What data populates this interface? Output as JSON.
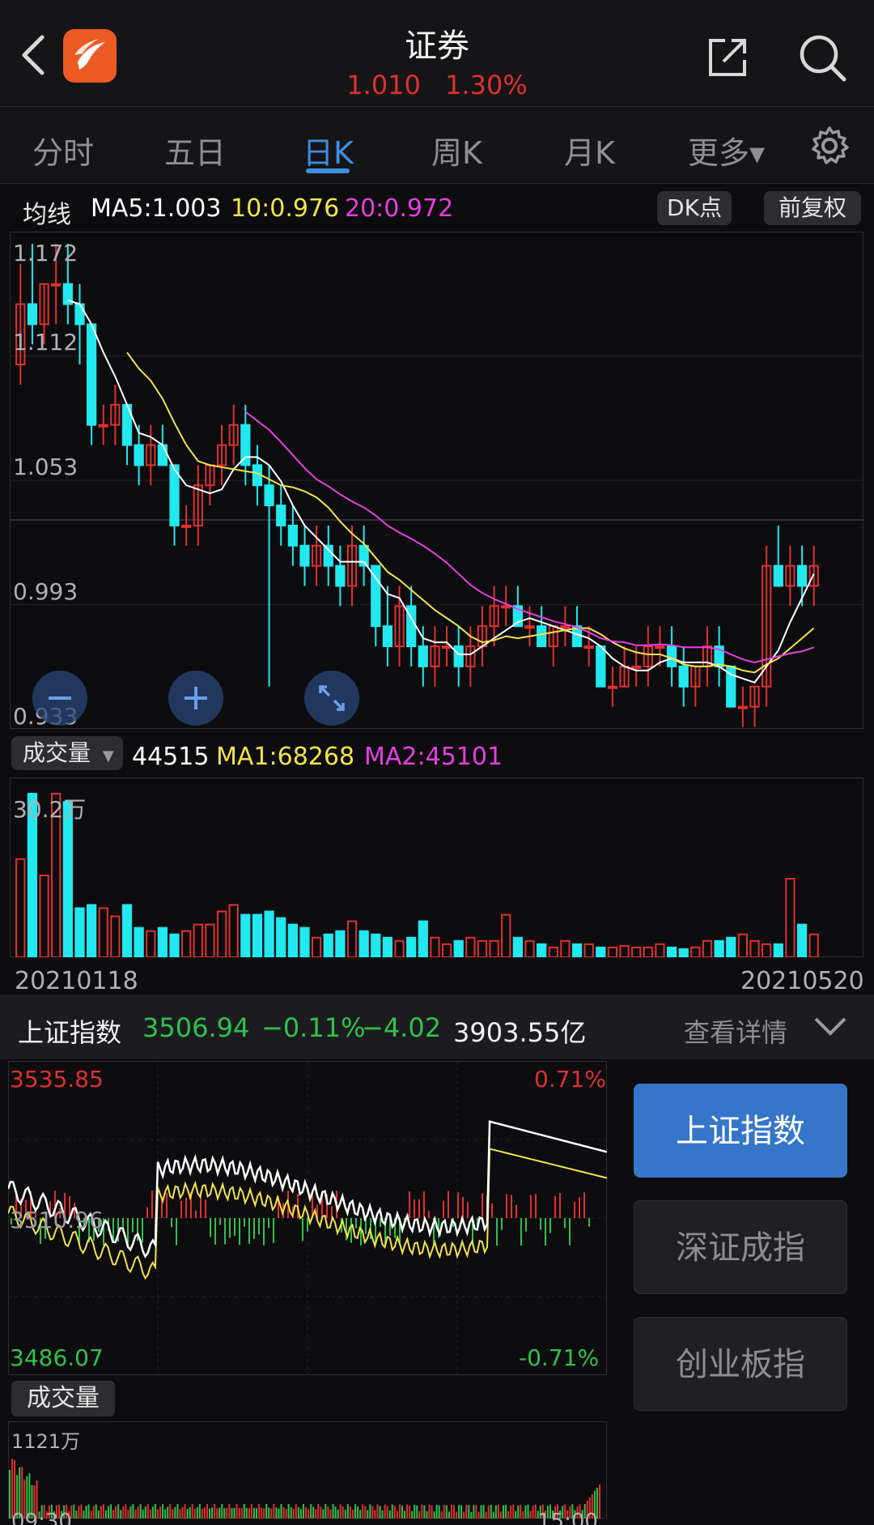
{
  "header": {
    "title": "证券",
    "price": "1.010",
    "change_pct": "1.30%",
    "subtitle": "1.010   1.30%"
  },
  "tabs": [
    {
      "label": "分时",
      "active": false
    },
    {
      "label": "五日",
      "active": false
    },
    {
      "label": "日K",
      "active": true
    },
    {
      "label": "周K",
      "active": false
    },
    {
      "label": "月K",
      "active": false
    },
    {
      "label": "更多▾",
      "active": false
    }
  ],
  "ma": {
    "label": "均线",
    "ma5": "MA5:1.003",
    "ma10": "10:0.976",
    "ma20": "20:0.972",
    "dk_button": "DK点",
    "adjust_button": "前复权"
  },
  "kline_axis": {
    "y_labels": [
      "1.172",
      "1.112",
      "1.053",
      "0.993",
      "0.933"
    ]
  },
  "volume": {
    "label": "成交量",
    "value": "44515",
    "ma1": "MA1:68268",
    "ma2": "MA2:45101",
    "max_label": "30.2万"
  },
  "dates": {
    "start": "20210118",
    "end": "20210520"
  },
  "index_bar": {
    "name": "上证指数",
    "price": "3506.94",
    "pct": "−0.11%",
    "change": "−4.02",
    "turnover": "3903.55亿",
    "details": "查看详情"
  },
  "index_chart": {
    "high": "3535.85",
    "mid": "3510.96",
    "low": "3486.07",
    "high_pct": "0.71%",
    "low_pct": "-0.71%",
    "vol_label": "成交量",
    "vol_max": "1121万",
    "time_start": "09:30",
    "time_end": "15:00"
  },
  "index_buttons": [
    {
      "label": "上证指数",
      "active": true
    },
    {
      "label": "深证成指",
      "active": false
    },
    {
      "label": "创业板指",
      "active": false
    }
  ],
  "colors": {
    "up": "#e0302f",
    "down": "#22e8f0",
    "ma5": "#ffffff",
    "ma10": "#f3e34a",
    "ma20": "#e63ee3",
    "accent": "#3d8fe0",
    "green": "#2fc24a"
  },
  "chart_data": {
    "type": "candlestick",
    "x": [
      "20210118",
      "20210520"
    ],
    "ylim": [
      0.933,
      1.172
    ],
    "ohlc": [
      [
        1.11,
        1.16,
        1.1,
        1.14
      ],
      [
        1.14,
        1.17,
        1.12,
        1.13
      ],
      [
        1.13,
        1.15,
        1.12,
        1.15
      ],
      [
        1.15,
        1.17,
        1.13,
        1.15
      ],
      [
        1.15,
        1.17,
        1.13,
        1.14
      ],
      [
        1.14,
        1.15,
        1.11,
        1.13
      ],
      [
        1.13,
        1.13,
        1.07,
        1.08
      ],
      [
        1.08,
        1.09,
        1.07,
        1.08
      ],
      [
        1.08,
        1.1,
        1.07,
        1.09
      ],
      [
        1.09,
        1.09,
        1.06,
        1.07
      ],
      [
        1.07,
        1.08,
        1.05,
        1.06
      ],
      [
        1.06,
        1.08,
        1.05,
        1.07
      ],
      [
        1.07,
        1.08,
        1.06,
        1.06
      ],
      [
        1.06,
        1.06,
        1.02,
        1.03
      ],
      [
        1.03,
        1.04,
        1.02,
        1.03
      ],
      [
        1.03,
        1.06,
        1.02,
        1.05
      ],
      [
        1.05,
        1.06,
        1.04,
        1.06
      ],
      [
        1.06,
        1.08,
        1.05,
        1.07
      ],
      [
        1.07,
        1.09,
        1.06,
        1.08
      ],
      [
        1.08,
        1.09,
        1.05,
        1.06
      ],
      [
        1.06,
        1.07,
        1.04,
        1.05
      ],
      [
        1.05,
        1.06,
        0.95,
        1.04
      ],
      [
        1.04,
        1.05,
        1.02,
        1.03
      ],
      [
        1.03,
        1.04,
        1.01,
        1.02
      ],
      [
        1.02,
        1.03,
        1.0,
        1.01
      ],
      [
        1.01,
        1.03,
        1.0,
        1.02
      ],
      [
        1.02,
        1.03,
        1.0,
        1.01
      ],
      [
        1.01,
        1.02,
        0.99,
        1.0
      ],
      [
        1.0,
        1.03,
        0.99,
        1.02
      ],
      [
        1.02,
        1.03,
        1.0,
        1.01
      ],
      [
        1.01,
        1.01,
        0.97,
        0.98
      ],
      [
        0.98,
        1.0,
        0.96,
        0.97
      ],
      [
        0.97,
        1.0,
        0.96,
        0.99
      ],
      [
        0.99,
        1.0,
        0.96,
        0.97
      ],
      [
        0.97,
        0.98,
        0.95,
        0.96
      ],
      [
        0.96,
        0.98,
        0.95,
        0.97
      ],
      [
        0.97,
        0.98,
        0.96,
        0.97
      ],
      [
        0.97,
        0.98,
        0.95,
        0.96
      ],
      [
        0.96,
        0.98,
        0.95,
        0.97
      ],
      [
        0.97,
        0.99,
        0.96,
        0.98
      ],
      [
        0.98,
        1.0,
        0.97,
        0.99
      ],
      [
        0.99,
        1.0,
        0.98,
        0.99
      ],
      [
        0.99,
        1.0,
        0.98,
        0.98
      ],
      [
        0.98,
        0.99,
        0.97,
        0.98
      ],
      [
        0.98,
        0.99,
        0.97,
        0.97
      ],
      [
        0.97,
        0.98,
        0.96,
        0.98
      ],
      [
        0.98,
        0.99,
        0.97,
        0.98
      ],
      [
        0.98,
        0.99,
        0.97,
        0.97
      ],
      [
        0.97,
        0.98,
        0.96,
        0.97
      ],
      [
        0.97,
        0.97,
        0.95,
        0.95
      ],
      [
        0.95,
        0.96,
        0.94,
        0.95
      ],
      [
        0.95,
        0.97,
        0.95,
        0.96
      ],
      [
        0.96,
        0.97,
        0.95,
        0.96
      ],
      [
        0.96,
        0.98,
        0.95,
        0.97
      ],
      [
        0.97,
        0.98,
        0.96,
        0.97
      ],
      [
        0.97,
        0.98,
        0.95,
        0.96
      ],
      [
        0.96,
        0.97,
        0.94,
        0.95
      ],
      [
        0.95,
        0.96,
        0.94,
        0.96
      ],
      [
        0.96,
        0.98,
        0.95,
        0.97
      ],
      [
        0.97,
        0.98,
        0.95,
        0.96
      ],
      [
        0.96,
        0.96,
        0.94,
        0.94
      ],
      [
        0.94,
        0.95,
        0.93,
        0.94
      ],
      [
        0.94,
        0.95,
        0.93,
        0.95
      ],
      [
        0.95,
        1.02,
        0.94,
        1.01
      ],
      [
        1.01,
        1.03,
        1.0,
        1.0
      ],
      [
        1.0,
        1.02,
        0.99,
        1.01
      ],
      [
        1.01,
        1.02,
        0.99,
        1.0
      ],
      [
        1.0,
        1.02,
        0.99,
        1.01
      ]
    ]
  }
}
